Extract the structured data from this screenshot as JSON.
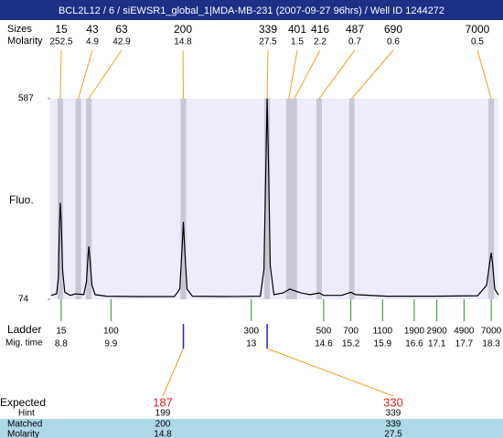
{
  "title": "BCL2L12 / 6 / siEWSR1_global_1|MDA-MB-231 (2007-09-27 96hrs) / Well ID 1244272",
  "peaks": {
    "size_label": "Sizes",
    "molarity_label": "Molarity",
    "sizes": [
      15,
      43,
      63,
      200,
      339,
      401,
      416,
      487,
      690,
      7000
    ],
    "molarity": [
      252.5,
      4.9,
      42.9,
      14.8,
      27.5,
      1.5,
      2.2,
      0.7,
      0.6,
      0.5
    ],
    "times": [
      8.78,
      9.18,
      9.41,
      11.5,
      13.35,
      13.83,
      13.95,
      14.5,
      15.22,
      18.3
    ]
  },
  "ladder": {
    "label": "Ladder",
    "time_label": "Mig. time",
    "sizes": [
      15,
      100,
      300,
      500,
      700,
      1100,
      1900,
      2900,
      4900,
      7000
    ],
    "times": [
      8.8,
      9.9,
      13,
      14.6,
      15.2,
      15.9,
      16.6,
      17.1,
      17.7,
      18.3
    ]
  },
  "expected": {
    "label": "Expected",
    "hint_label": "Hint",
    "matched_label": "Matched",
    "molarity_label": "Molarity",
    "expected": [
      187,
      330
    ],
    "hint": [
      199,
      339
    ],
    "matched": [
      200,
      339
    ],
    "molarity": [
      14.8,
      27.5
    ]
  },
  "chart_data": {
    "type": "line",
    "ylabel": "Fluo.",
    "x": [
      8.58,
      8.7,
      8.74,
      8.76,
      8.78,
      8.8,
      8.83,
      8.88,
      9.0,
      9.12,
      9.3,
      9.36,
      9.39,
      9.41,
      9.44,
      9.48,
      9.55,
      9.8,
      10.5,
      11.3,
      11.42,
      11.47,
      11.5,
      11.53,
      11.58,
      11.7,
      12.5,
      13.2,
      13.28,
      13.32,
      13.35,
      13.38,
      13.42,
      13.5,
      13.7,
      13.85,
      13.95,
      14.1,
      14.3,
      14.5,
      14.6,
      15.0,
      15.2,
      15.3,
      16.0,
      17.0,
      18.0,
      18.2,
      18.27,
      18.3,
      18.33,
      18.38,
      18.46
    ],
    "values": [
      84,
      88,
      130,
      250,
      321,
      280,
      150,
      92,
      84,
      88,
      86,
      120,
      180,
      209,
      170,
      110,
      86,
      82,
      81,
      81,
      100,
      200,
      272,
      200,
      100,
      82,
      81,
      82,
      150,
      400,
      587,
      420,
      160,
      86,
      90,
      100,
      96,
      90,
      86,
      90,
      84,
      84,
      92,
      86,
      82,
      82,
      83,
      110,
      170,
      193,
      165,
      100,
      85
    ],
    "xlim": [
      8.56,
      18.46
    ],
    "ylim": [
      74,
      587
    ],
    "yticks": [
      74,
      587
    ],
    "color": "#000000"
  }
}
